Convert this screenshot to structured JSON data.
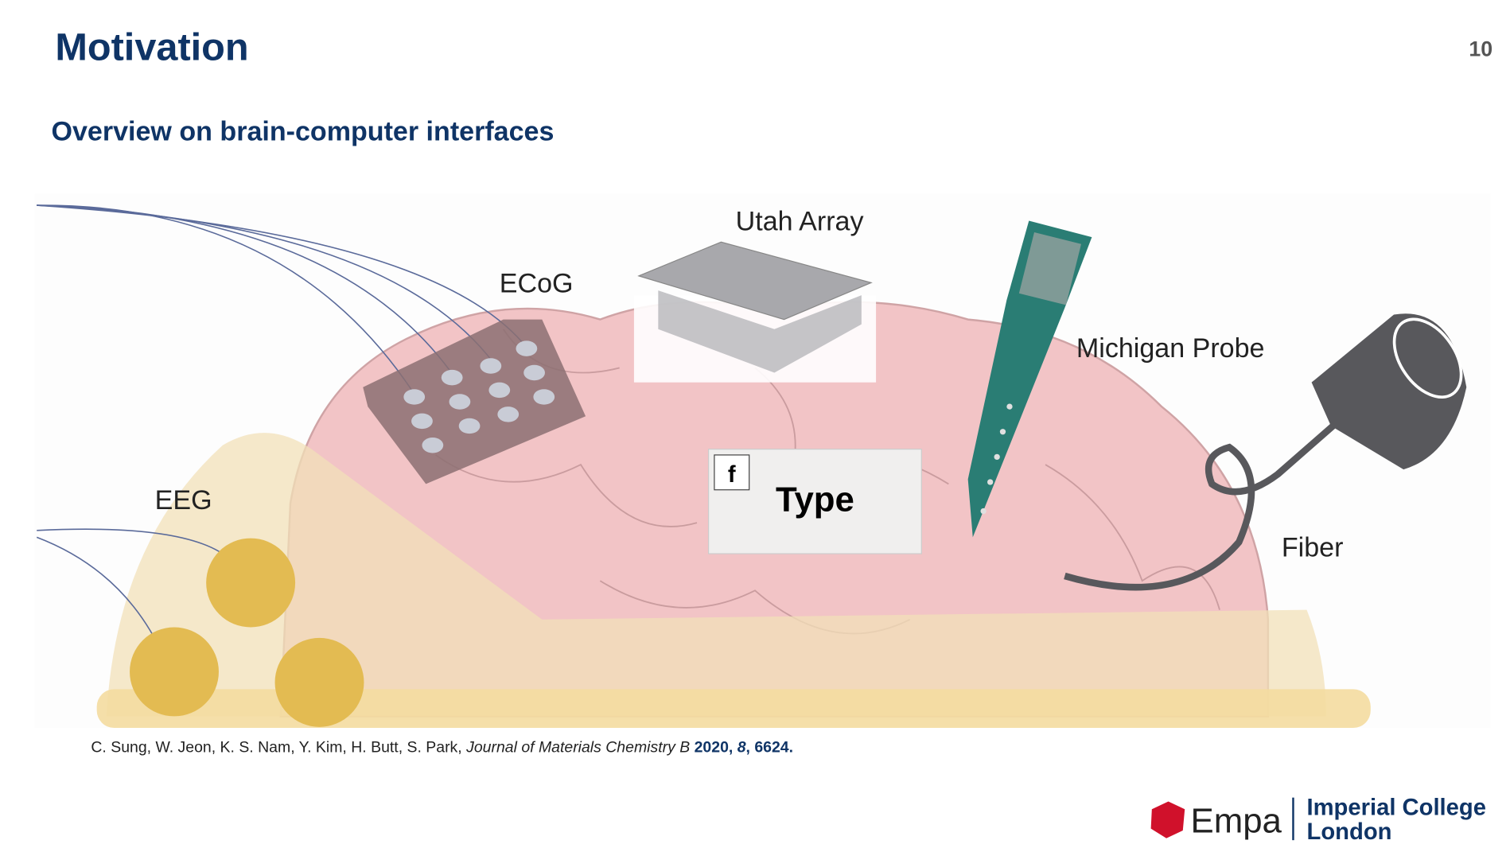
{
  "header": {
    "title": "Motivation",
    "page_number": "10",
    "subtitle": "Overview on brain-computer interfaces"
  },
  "figure": {
    "labels": {
      "utah": "Utah Array",
      "ecog": "ECoG",
      "michigan": "Michigan Probe",
      "eeg": "EEG",
      "fiber": "Fiber"
    },
    "overlay": {
      "icon": "f",
      "text": "Type"
    }
  },
  "citation": {
    "authors": "C. Sung, W. Jeon, K. S. Nam, Y. Kim, H. Butt, S. Park, ",
    "journal": "Journal of Materials Chemistry B",
    "year": " 2020, ",
    "volume": "8",
    "pages": ", 6624."
  },
  "footer": {
    "empa": "Empa",
    "imperial_1": "Imperial College",
    "imperial_2": "London"
  }
}
